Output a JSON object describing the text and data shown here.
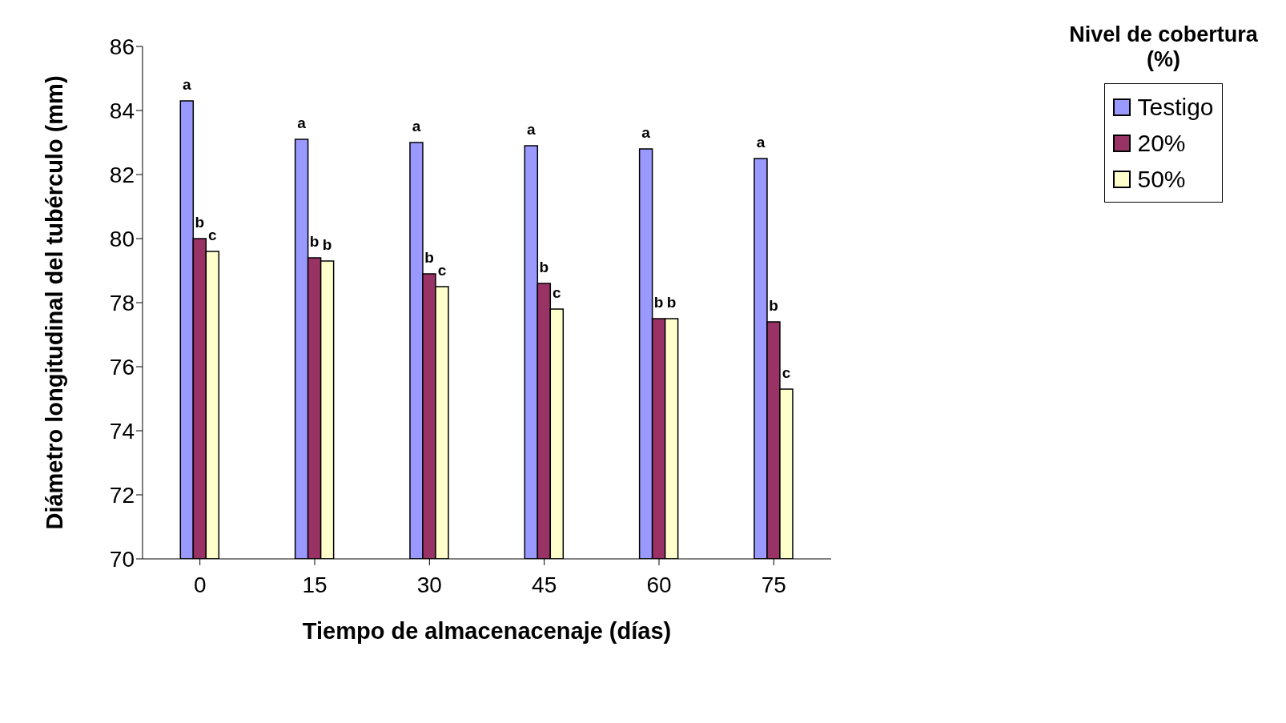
{
  "chart_data": {
    "type": "bar",
    "xlabel": "Tiempo de almacenacenaje (días)",
    "ylabel": "Diámetro longitudinal del tubérculo (mm)",
    "legend_title": "Nivel de cobertura (%)",
    "categories": [
      "0",
      "15",
      "30",
      "45",
      "60",
      "75"
    ],
    "ylim": [
      70,
      86
    ],
    "yticks": [
      70,
      72,
      74,
      76,
      78,
      80,
      82,
      84,
      86
    ],
    "grid": false,
    "legend": "top right",
    "series": [
      {
        "name": "Testigo",
        "color": "#9999ff",
        "values": [
          84.3,
          83.1,
          83.0,
          82.9,
          82.8,
          82.5
        ],
        "value_labels": [
          "a",
          "a",
          "a",
          "a",
          "a",
          "a"
        ]
      },
      {
        "name": "20%",
        "color": "#993366",
        "values": [
          80.0,
          79.4,
          78.9,
          78.6,
          77.5,
          77.4
        ],
        "value_labels": [
          "b",
          "b",
          "b",
          "b",
          "b",
          "b"
        ]
      },
      {
        "name": "50%",
        "color": "#ffffcc",
        "values": [
          79.6,
          79.3,
          78.5,
          77.8,
          77.5,
          75.3
        ],
        "value_labels": [
          "c",
          "b",
          "c",
          "c",
          "b",
          "c"
        ]
      }
    ]
  }
}
